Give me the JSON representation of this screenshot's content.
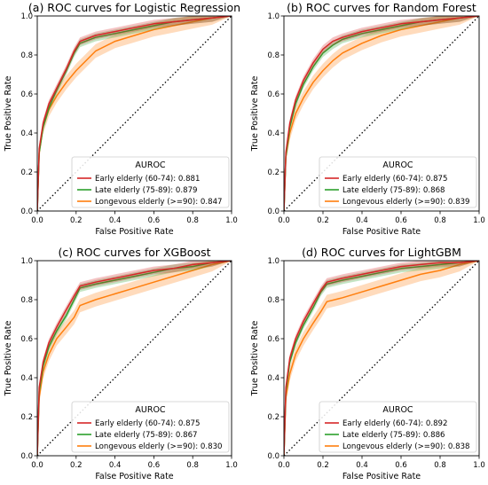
{
  "colors": {
    "early": "#d62728",
    "late": "#2ca02c",
    "longevous": "#ff7f0e",
    "diagonal": "#000000"
  },
  "chart_data": [
    {
      "type": "line",
      "title": "(a) ROC curves for Logistic Regression",
      "xlabel": "False Positive Rate",
      "ylabel": "True Positive Rate",
      "xlim": [
        0,
        1
      ],
      "ylim": [
        0,
        1
      ],
      "xticks": [
        "0.0",
        "0.2",
        "0.4",
        "0.6",
        "0.8",
        "1.0"
      ],
      "yticks": [
        "0.0",
        "0.2",
        "0.4",
        "0.6",
        "0.8",
        "1.0"
      ],
      "grid": false,
      "legend": {
        "title": "AUROC",
        "placement": "lower-right"
      },
      "series": [
        {
          "key": "early",
          "name": "Early elderly (60-74): 0.881",
          "band": 0.02,
          "x": [
            0,
            0.01,
            0.03,
            0.06,
            0.1,
            0.15,
            0.19,
            0.22,
            0.3,
            0.4,
            0.5,
            0.6,
            0.7,
            0.8,
            0.9,
            1.0
          ],
          "y": [
            0,
            0.32,
            0.45,
            0.55,
            0.63,
            0.73,
            0.82,
            0.87,
            0.9,
            0.92,
            0.94,
            0.96,
            0.97,
            0.98,
            0.99,
            1.0
          ]
        },
        {
          "key": "late",
          "name": "Late elderly  (75-89): 0.879",
          "band": 0.02,
          "x": [
            0,
            0.01,
            0.03,
            0.06,
            0.1,
            0.15,
            0.19,
            0.22,
            0.3,
            0.4,
            0.5,
            0.6,
            0.7,
            0.8,
            0.9,
            1.0
          ],
          "y": [
            0,
            0.3,
            0.43,
            0.53,
            0.62,
            0.72,
            0.81,
            0.86,
            0.89,
            0.91,
            0.93,
            0.95,
            0.97,
            0.98,
            0.99,
            1.0
          ]
        },
        {
          "key": "longevous",
          "name": "Longevous elderly (>=90): 0.847",
          "band": 0.035,
          "x": [
            0,
            0.01,
            0.03,
            0.06,
            0.1,
            0.15,
            0.2,
            0.25,
            0.3,
            0.4,
            0.5,
            0.6,
            0.7,
            0.8,
            0.9,
            1.0
          ],
          "y": [
            0,
            0.3,
            0.43,
            0.52,
            0.59,
            0.66,
            0.72,
            0.77,
            0.82,
            0.87,
            0.9,
            0.93,
            0.95,
            0.97,
            0.99,
            1.0
          ]
        }
      ]
    },
    {
      "type": "line",
      "title": "(b) ROC curves for Random Forest",
      "xlabel": "False Positive Rate",
      "ylabel": "True Positive Rate",
      "xlim": [
        0,
        1
      ],
      "ylim": [
        0,
        1
      ],
      "xticks": [
        "0.0",
        "0.2",
        "0.4",
        "0.6",
        "0.8",
        "1.0"
      ],
      "yticks": [
        "0.0",
        "0.2",
        "0.4",
        "0.6",
        "0.8",
        "1.0"
      ],
      "grid": false,
      "legend": {
        "title": "AUROC",
        "placement": "lower-right"
      },
      "series": [
        {
          "key": "early",
          "name": "Early elderly (60-74): 0.875",
          "band": 0.02,
          "x": [
            0,
            0.01,
            0.03,
            0.06,
            0.1,
            0.15,
            0.2,
            0.25,
            0.3,
            0.4,
            0.5,
            0.6,
            0.7,
            0.8,
            0.9,
            1.0
          ],
          "y": [
            0,
            0.3,
            0.45,
            0.57,
            0.67,
            0.76,
            0.83,
            0.87,
            0.89,
            0.92,
            0.94,
            0.96,
            0.97,
            0.98,
            0.99,
            1.0
          ]
        },
        {
          "key": "late",
          "name": "Late elderly  (75-89): 0.868",
          "band": 0.02,
          "x": [
            0,
            0.01,
            0.03,
            0.06,
            0.1,
            0.15,
            0.2,
            0.25,
            0.3,
            0.4,
            0.5,
            0.6,
            0.7,
            0.8,
            0.9,
            1.0
          ],
          "y": [
            0,
            0.28,
            0.43,
            0.55,
            0.65,
            0.74,
            0.81,
            0.85,
            0.88,
            0.91,
            0.93,
            0.95,
            0.97,
            0.98,
            0.99,
            1.0
          ]
        },
        {
          "key": "longevous",
          "name": "Longevous elderly (>=90): 0.839",
          "band": 0.035,
          "x": [
            0,
            0.01,
            0.03,
            0.06,
            0.1,
            0.15,
            0.2,
            0.25,
            0.3,
            0.4,
            0.5,
            0.6,
            0.7,
            0.8,
            0.9,
            1.0
          ],
          "y": [
            0,
            0.28,
            0.4,
            0.5,
            0.58,
            0.66,
            0.72,
            0.77,
            0.81,
            0.86,
            0.9,
            0.93,
            0.95,
            0.97,
            0.99,
            1.0
          ]
        }
      ]
    },
    {
      "type": "line",
      "title": "(c) ROC curves for XGBoost",
      "xlabel": "False Positive Rate",
      "ylabel": "True Positive Rate",
      "xlim": [
        0,
        1
      ],
      "ylim": [
        0,
        1
      ],
      "xticks": [
        "0.0",
        "0.2",
        "0.4",
        "0.6",
        "0.8",
        "1.0"
      ],
      "yticks": [
        "0.0",
        "0.2",
        "0.4",
        "0.6",
        "0.8",
        "1.0"
      ],
      "grid": false,
      "legend": {
        "title": "AUROC",
        "placement": "lower-right"
      },
      "series": [
        {
          "key": "early",
          "name": "Early elderly (60-74): 0.875",
          "band": 0.02,
          "x": [
            0,
            0.01,
            0.03,
            0.06,
            0.1,
            0.15,
            0.19,
            0.22,
            0.3,
            0.4,
            0.5,
            0.6,
            0.7,
            0.8,
            0.9,
            1.0
          ],
          "y": [
            0,
            0.35,
            0.48,
            0.58,
            0.66,
            0.75,
            0.82,
            0.87,
            0.89,
            0.91,
            0.93,
            0.95,
            0.96,
            0.98,
            0.99,
            1.0
          ]
        },
        {
          "key": "late",
          "name": "Late elderly  (75-89): 0.867",
          "band": 0.02,
          "x": [
            0,
            0.01,
            0.03,
            0.06,
            0.1,
            0.15,
            0.19,
            0.22,
            0.3,
            0.4,
            0.5,
            0.6,
            0.7,
            0.8,
            0.9,
            1.0
          ],
          "y": [
            0,
            0.33,
            0.46,
            0.56,
            0.64,
            0.72,
            0.8,
            0.86,
            0.88,
            0.9,
            0.92,
            0.94,
            0.96,
            0.97,
            0.99,
            1.0
          ]
        },
        {
          "key": "longevous",
          "name": "Longevous elderly (>=90): 0.830",
          "band": 0.035,
          "x": [
            0,
            0.01,
            0.03,
            0.06,
            0.1,
            0.15,
            0.19,
            0.22,
            0.3,
            0.4,
            0.5,
            0.6,
            0.7,
            0.8,
            0.9,
            1.0
          ],
          "y": [
            0,
            0.3,
            0.43,
            0.52,
            0.6,
            0.66,
            0.71,
            0.77,
            0.8,
            0.83,
            0.86,
            0.89,
            0.92,
            0.95,
            0.98,
            1.0
          ]
        }
      ]
    },
    {
      "type": "line",
      "title": "(d) ROC curves for LightGBM",
      "xlabel": "False Positive Rate",
      "ylabel": "True Positive Rate",
      "xlim": [
        0,
        1
      ],
      "ylim": [
        0,
        1
      ],
      "xticks": [
        "0.0",
        "0.2",
        "0.4",
        "0.6",
        "0.8",
        "1.0"
      ],
      "yticks": [
        "0.0",
        "0.2",
        "0.4",
        "0.6",
        "0.8",
        "1.0"
      ],
      "grid": false,
      "legend": {
        "title": "AUROC",
        "placement": "lower-right"
      },
      "series": [
        {
          "key": "early",
          "name": "Early elderly (60-74): 0.892",
          "band": 0.02,
          "x": [
            0,
            0.01,
            0.03,
            0.06,
            0.1,
            0.15,
            0.19,
            0.22,
            0.3,
            0.4,
            0.5,
            0.6,
            0.7,
            0.8,
            0.9,
            1.0
          ],
          "y": [
            0,
            0.35,
            0.5,
            0.6,
            0.69,
            0.78,
            0.85,
            0.89,
            0.91,
            0.93,
            0.95,
            0.97,
            0.98,
            0.99,
            0.99,
            1.0
          ]
        },
        {
          "key": "late",
          "name": "Late elderly  (75-89): 0.886",
          "band": 0.02,
          "x": [
            0,
            0.01,
            0.03,
            0.06,
            0.1,
            0.15,
            0.19,
            0.22,
            0.3,
            0.4,
            0.5,
            0.6,
            0.7,
            0.8,
            0.9,
            1.0
          ],
          "y": [
            0,
            0.33,
            0.48,
            0.58,
            0.67,
            0.76,
            0.84,
            0.88,
            0.9,
            0.92,
            0.94,
            0.96,
            0.97,
            0.98,
            0.99,
            1.0
          ]
        },
        {
          "key": "longevous",
          "name": "Longevous elderly (>=90): 0.838",
          "band": 0.035,
          "x": [
            0,
            0.01,
            0.03,
            0.06,
            0.1,
            0.15,
            0.19,
            0.22,
            0.3,
            0.4,
            0.5,
            0.6,
            0.7,
            0.8,
            0.9,
            1.0
          ],
          "y": [
            0,
            0.3,
            0.42,
            0.52,
            0.6,
            0.68,
            0.74,
            0.79,
            0.81,
            0.84,
            0.87,
            0.9,
            0.93,
            0.95,
            0.98,
            1.0
          ]
        }
      ]
    }
  ]
}
